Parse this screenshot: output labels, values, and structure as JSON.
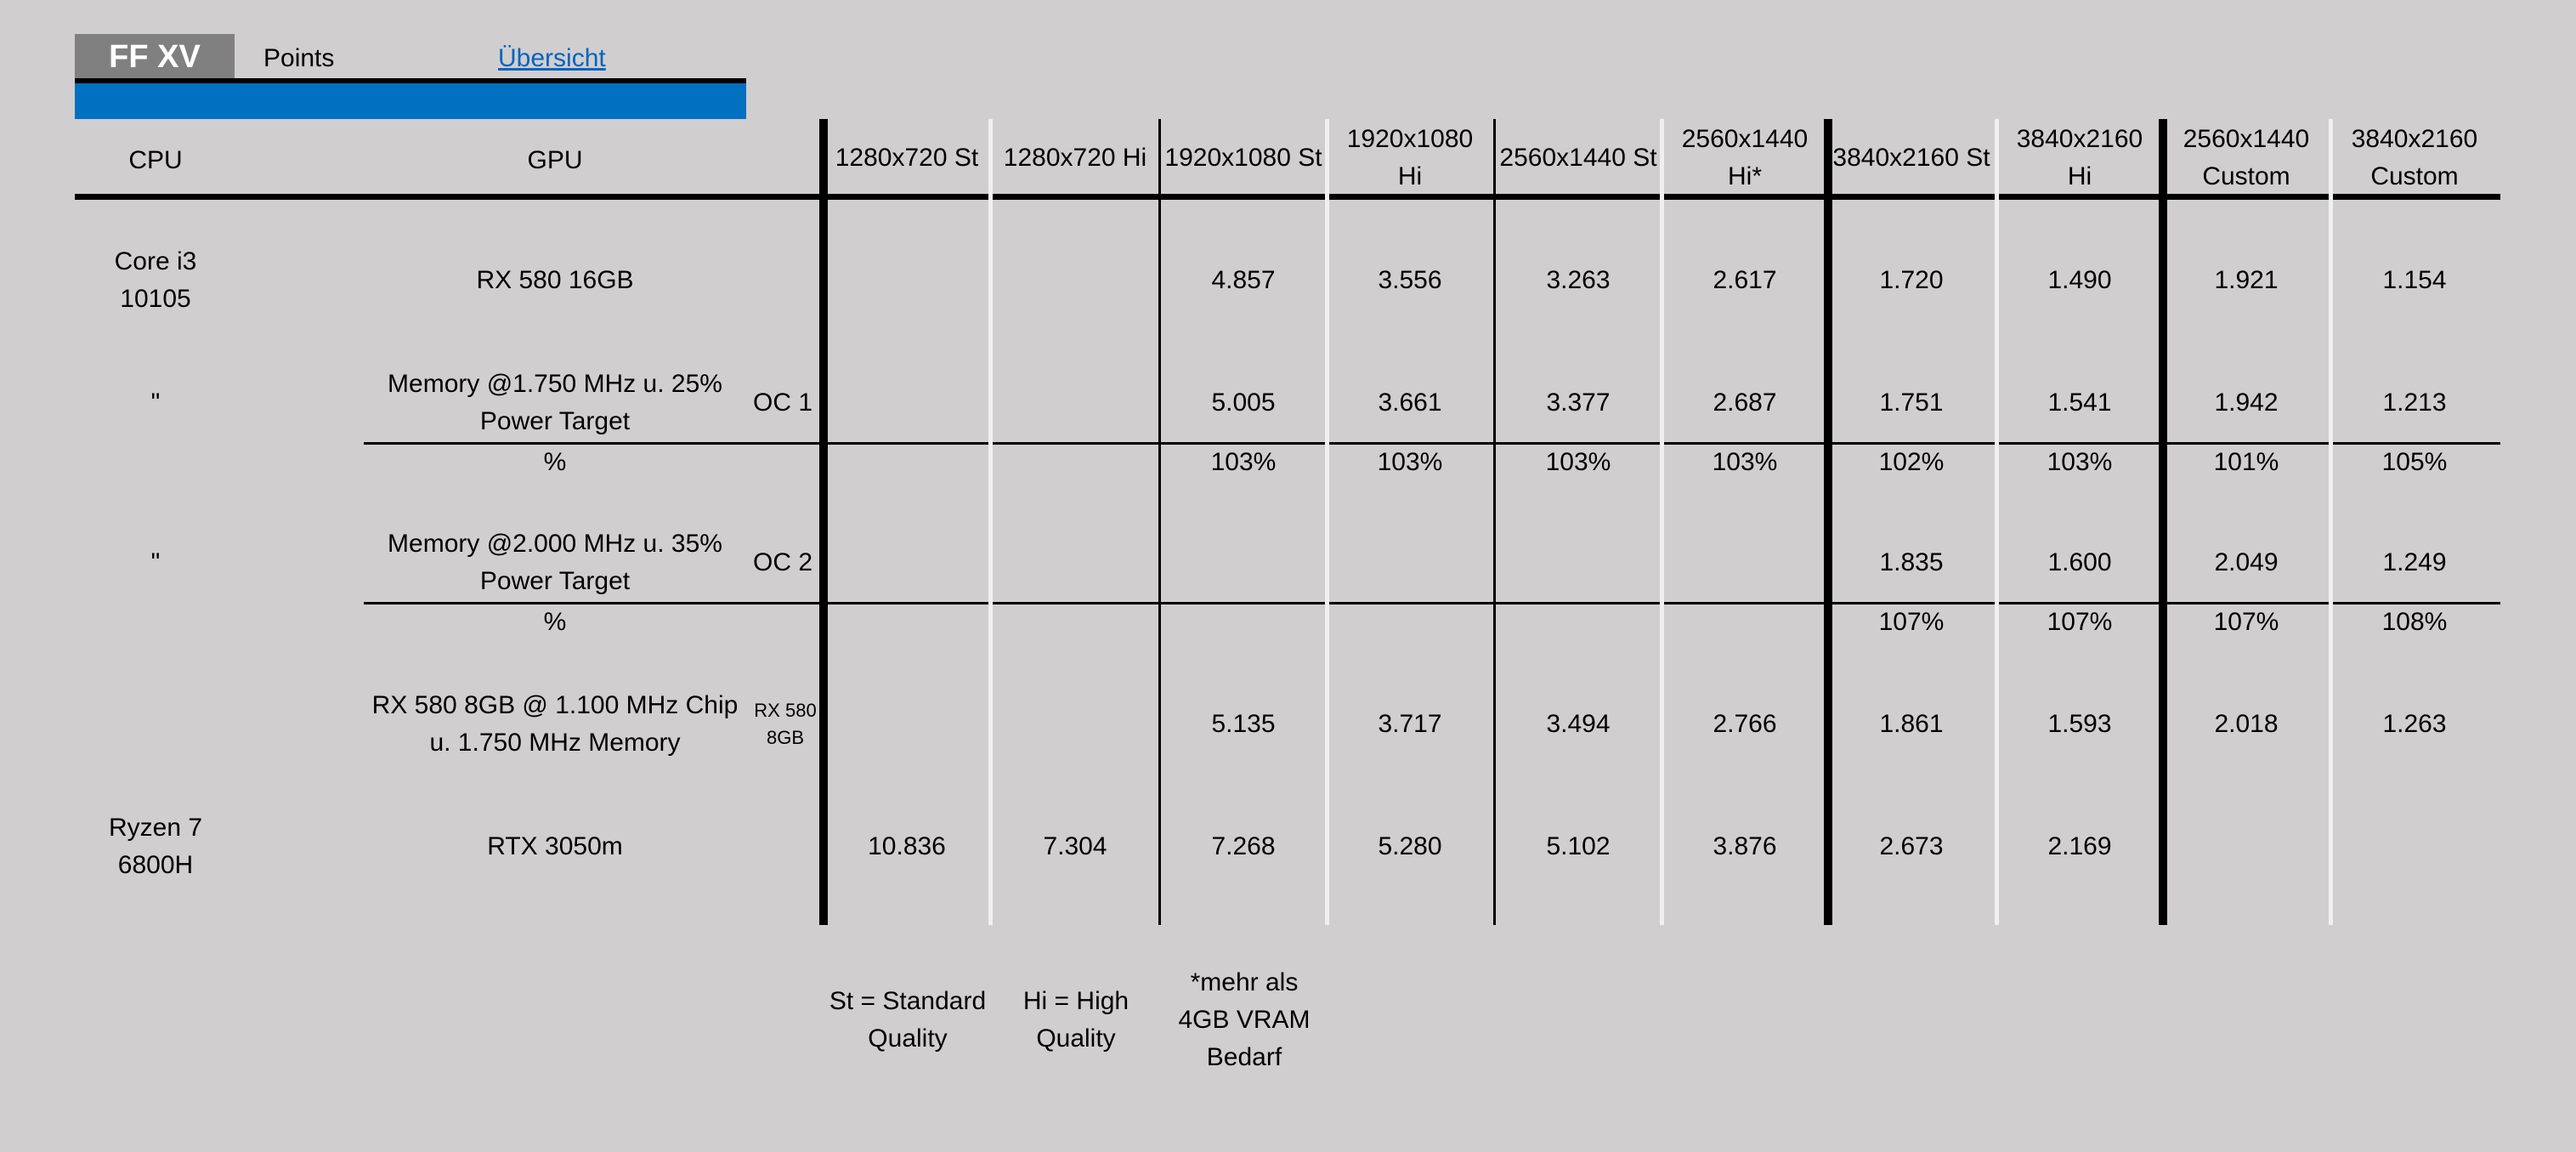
{
  "tabs": {
    "title": "FF XV",
    "points": "Points",
    "overview_link": "Übersicht"
  },
  "headers": {
    "cpu": "CPU",
    "gpu": "GPU",
    "cols": [
      "1280x720 St",
      "1280x720 Hi",
      "1920x1080 St",
      "1920x1080\nHi",
      "2560x1440 St",
      "2560x1440\nHi*",
      "3840x2160 St",
      "3840x2160\nHi",
      "2560x1440\nCustom",
      "3840x2160\nCustom"
    ]
  },
  "rows": [
    {
      "cpu": "Core i3\n10105",
      "gpu": "RX 580 16GB",
      "tag": "",
      "values": [
        "",
        "",
        "4.857",
        "3.556",
        "3.263",
        "2.617",
        "1.720",
        "1.490",
        "1.921",
        "1.154"
      ]
    },
    {
      "cpu": "\"",
      "gpu": "Memory @1.750 MHz u. 25%\nPower Target",
      "tag": "OC 1",
      "values": [
        "",
        "",
        "5.005",
        "3.661",
        "3.377",
        "2.687",
        "1.751",
        "1.541",
        "1.942",
        "1.213"
      ]
    },
    {
      "cpu": "",
      "gpu": "%",
      "tag": "",
      "values": [
        "",
        "",
        "103%",
        "103%",
        "103%",
        "103%",
        "102%",
        "103%",
        "101%",
        "105%"
      ]
    },
    {
      "cpu": "\"",
      "gpu": "Memory @2.000 MHz u. 35%\nPower Target",
      "tag": "OC 2",
      "values": [
        "",
        "",
        "",
        "",
        "",
        "",
        "1.835",
        "1.600",
        "2.049",
        "1.249"
      ]
    },
    {
      "cpu": "",
      "gpu": "%",
      "tag": "",
      "values": [
        "",
        "",
        "",
        "",
        "",
        "",
        "107%",
        "107%",
        "107%",
        "108%"
      ]
    },
    {
      "cpu": "",
      "gpu": "RX 580 8GB @ 1.100 MHz Chip\nu. 1.750 MHz Memory",
      "tag": "RX 580\n8GB",
      "values": [
        "",
        "",
        "5.135",
        "3.717",
        "3.494",
        "2.766",
        "1.861",
        "1.593",
        "2.018",
        "1.263"
      ]
    },
    {
      "cpu": "Ryzen 7\n6800H",
      "gpu": "RTX 3050m",
      "tag": "",
      "values": [
        "10.836",
        "7.304",
        "7.268",
        "5.280",
        "5.102",
        "3.876",
        "2.673",
        "2.169",
        "",
        ""
      ]
    }
  ],
  "legend": [
    "St = Standard\nQuality",
    "Hi = High\nQuality",
    "*mehr als\n4GB VRAM\nBedarf"
  ]
}
